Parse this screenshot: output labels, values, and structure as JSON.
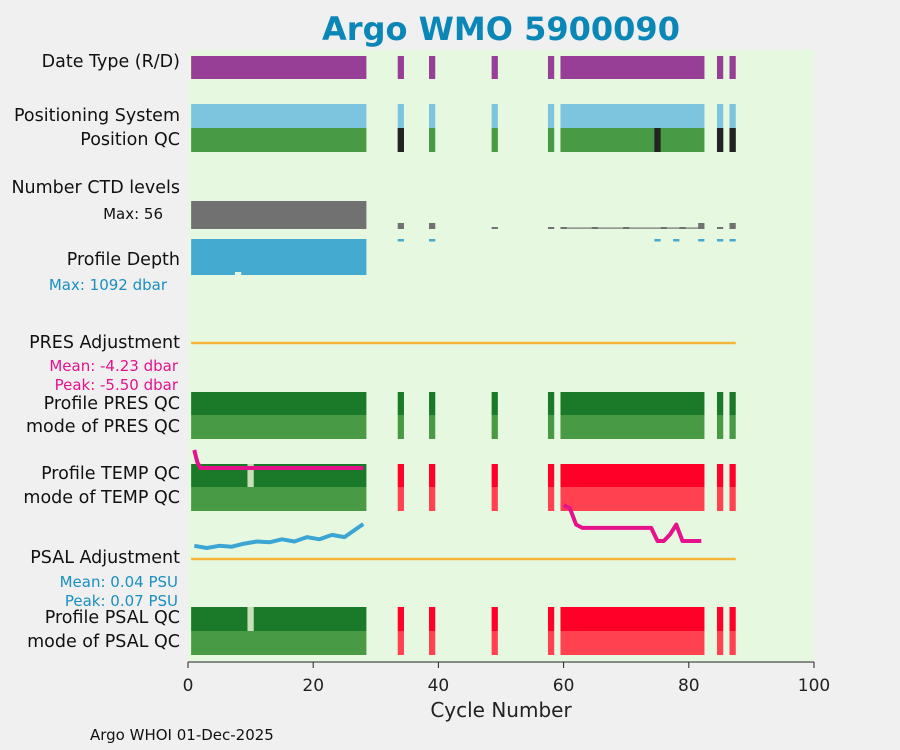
{
  "colors": {
    "plot_bg": "#e6f9e0",
    "date_type": "#973e97",
    "positioning": "#7dc4df",
    "qc_good": "#489a44",
    "qc_dark": "#1a7a2a",
    "qc_bad": "#ff0028",
    "qc_bad_light": "#ff4150",
    "qc_black": "#222222",
    "ctd_gray": "#717171",
    "depth_blue": "#44aad0",
    "adjust_line": "#f2b43b",
    "pres_trace": "#e6128c",
    "psal_trace": "#3ba6d4",
    "title": "#0b87b7",
    "stat_pink": "#e6128c",
    "stat_blue": "#1a8fc0"
  },
  "chart_data": {
    "type": "bar",
    "title": "Argo WMO 5900090",
    "xlabel": "Cycle Number",
    "xlim": [
      0,
      100
    ],
    "xticks": [
      0,
      20,
      40,
      60,
      80,
      100
    ],
    "row_labels": {
      "date_type": "Date Type (R/D)",
      "positioning_system": "Positioning System",
      "position_qc": "Position QC",
      "number_ctd_levels": "Number CTD levels",
      "ctd_max": "Max: 56",
      "profile_depth": "Profile Depth",
      "depth_max": "Max: 1092 dbar",
      "pres_adjustment": "PRES Adjustment",
      "pres_mean": "Mean: -4.23 dbar",
      "pres_peak": "Peak: -5.50 dbar",
      "profile_pres_qc": "Profile PRES QC",
      "mode_pres_qc": "mode of PRES QC",
      "profile_temp_qc": "Profile TEMP QC",
      "mode_temp_qc": "mode of TEMP QC",
      "psal_adjustment": "PSAL Adjustment",
      "psal_mean": "Mean: 0.04 PSU",
      "psal_peak": "Peak: 0.07 PSU",
      "profile_psal_qc": "Profile PSAL QC",
      "mode_psal_qc": "mode of PSAL QC"
    },
    "segments": [
      [
        0.5,
        28.5
      ],
      [
        33.5,
        34.5
      ],
      [
        38.5,
        39.5
      ],
      [
        48.5,
        49.5
      ],
      [
        57.5,
        58.5
      ],
      [
        59.5,
        82.5
      ],
      [
        84.5,
        85.5
      ],
      [
        86.5,
        87.5
      ]
    ],
    "early_segment": [
      0.5,
      28.5
    ],
    "temp_psal_bad_from_cycle": 33.5,
    "qc_gap_cycle": 10,
    "position_qc_black_cycles": [
      34,
      75,
      85,
      87
    ],
    "ctd_levels_max": 56,
    "ctd_levels_stub_cycles": [
      34,
      39,
      49,
      58,
      60,
      65,
      70,
      76,
      79,
      82,
      85,
      87
    ],
    "depth_max_dbar": 1092,
    "depth_stub_cycles": [
      34,
      39,
      75,
      78,
      82,
      85,
      87
    ],
    "depth_notch_cycle": 8,
    "adjustment_line_range": [
      0.5,
      87.5
    ],
    "pres_adjust": {
      "x": [
        1,
        1.5,
        2,
        4,
        8,
        12,
        16,
        20,
        24,
        28
      ],
      "y": [
        -4.2,
        -5.1,
        -5.5,
        -5.5,
        -5.5,
        -5.5,
        -5.5,
        -5.5,
        -5.5,
        -5.5
      ]
    },
    "pres_adjust_late": {
      "x": [
        60,
        61,
        62,
        63,
        66,
        70,
        74,
        75,
        76,
        77,
        78,
        79,
        80,
        82
      ],
      "y": [
        -3.5,
        -3.6,
        -4.1,
        -4.2,
        -4.2,
        -4.2,
        -4.2,
        -4.6,
        -4.6,
        -4.4,
        -4.1,
        -4.6,
        -4.6,
        -4.6
      ]
    },
    "psal_adjust": {
      "x": [
        1,
        3,
        5,
        7,
        9,
        11,
        13,
        15,
        17,
        19,
        21,
        23,
        25,
        27,
        28
      ],
      "y": [
        0.02,
        0.015,
        0.02,
        0.018,
        0.025,
        0.03,
        0.028,
        0.035,
        0.03,
        0.04,
        0.035,
        0.045,
        0.04,
        0.06,
        0.07
      ]
    }
  },
  "footer": "Argo WHOI 01-Dec-2025"
}
